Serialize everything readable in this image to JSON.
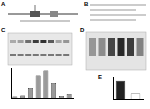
{
  "panels": [
    "A",
    "B",
    "C",
    "D",
    "E"
  ],
  "chart_data": [
    {
      "type": "bar",
      "panel": "C",
      "categories": [
        null,
        null,
        null,
        null,
        null,
        null,
        null,
        null
      ],
      "values": [
        0.3,
        0.5,
        2.0,
        4.5,
        5.5,
        3.0,
        0.4,
        0.8
      ],
      "color": "#9a9a9a",
      "ylim": [
        0,
        6
      ],
      "yticks": [
        0,
        2,
        4,
        6
      ],
      "grid": false,
      "tick_labels": false
    },
    {
      "type": "bar",
      "panel": "E",
      "categories": [
        null,
        null
      ],
      "values": [
        1.0,
        0.3
      ],
      "colors": [
        "#222222",
        "#ffffff"
      ],
      "ylim": [
        0,
        1.2
      ],
      "yticks": [
        0,
        0.4,
        0.8,
        1.2
      ],
      "grid": false,
      "tick_labels": false
    }
  ]
}
